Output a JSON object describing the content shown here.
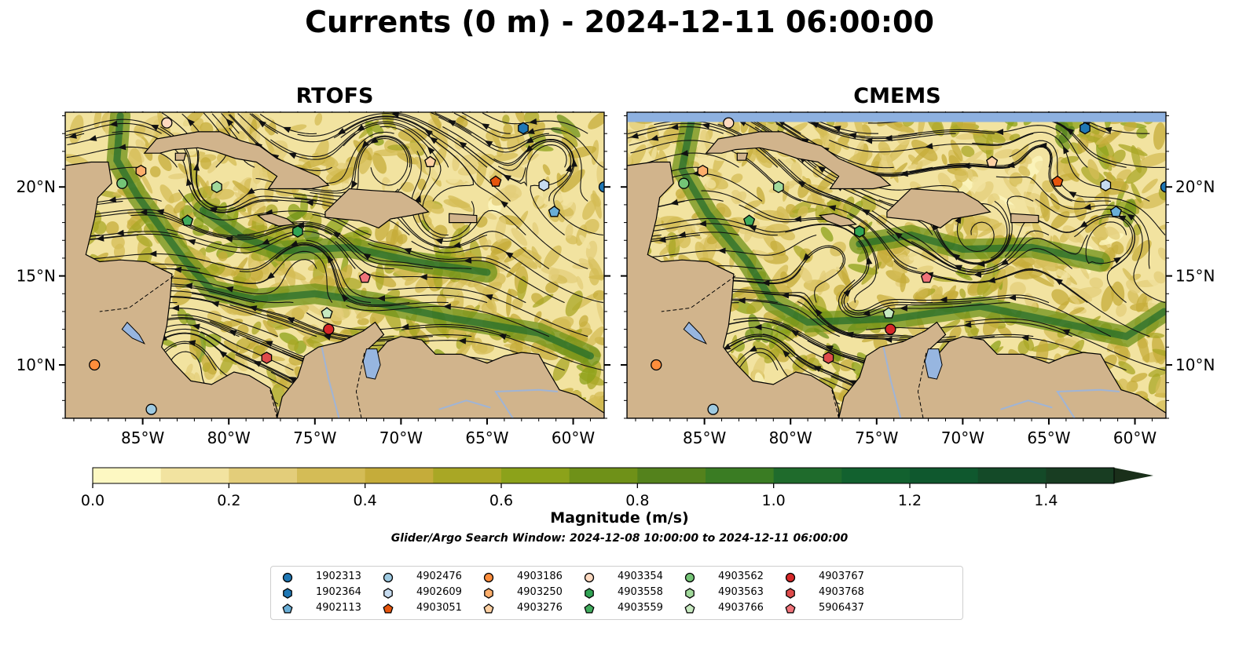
{
  "title": "Currents (0 m) - 2024-12-11 06:00:00",
  "panels": [
    {
      "title": "RTOFS"
    },
    {
      "title": "CMEMS"
    }
  ],
  "axes": {
    "x_ticks": [
      "85°W",
      "80°W",
      "75°W",
      "70°W",
      "65°W",
      "60°W"
    ],
    "y_ticks": [
      "20°N",
      "15°N",
      "10°N"
    ],
    "lon_range": [
      -89.5,
      -58.2
    ],
    "lat_range": [
      7,
      24.2
    ]
  },
  "colorbar": {
    "label": "Magnitude (m/s)",
    "ticks": [
      "0.0",
      "0.2",
      "0.4",
      "0.6",
      "0.8",
      "1.0",
      "1.2",
      "1.4"
    ],
    "range": [
      0,
      1.5
    ],
    "extend": "max",
    "colormap": [
      "#fdf8c2",
      "#f2e3a0",
      "#e3cd7a",
      "#d4bc56",
      "#c5ac3a",
      "#a9a725",
      "#8ca21a",
      "#6f9118",
      "#54821c",
      "#3a7c23",
      "#1f6b2c",
      "#12612f",
      "#0f582e",
      "#144a28",
      "#183d22",
      "#1a2f1a"
    ]
  },
  "search_window": "Glider/Argo Search Window: 2024-12-08 10:00:00 to 2024-12-11 06:00:00",
  "colors": {
    "land": "#d1b48c",
    "water_blue": "#97b6e0",
    "cmems_top_band": "#8eb1e0"
  },
  "legend": [
    {
      "id": "1902313",
      "marker": "circle",
      "color": "#1f77b4"
    },
    {
      "id": "1902364",
      "marker": "hexagon",
      "color": "#1f77b4"
    },
    {
      "id": "4902113",
      "marker": "pentagon",
      "color": "#6aaed6"
    },
    {
      "id": "4902476",
      "marker": "circle",
      "color": "#9ecae1"
    },
    {
      "id": "4902609",
      "marker": "hexagon",
      "color": "#c6dbef"
    },
    {
      "id": "4903051",
      "marker": "pentagon",
      "color": "#e6550d"
    },
    {
      "id": "4903186",
      "marker": "circle",
      "color": "#fd8d3c"
    },
    {
      "id": "4903250",
      "marker": "hexagon",
      "color": "#fdae6b"
    },
    {
      "id": "4903276",
      "marker": "pentagon",
      "color": "#fdd0a2"
    },
    {
      "id": "4903354",
      "marker": "circle",
      "color": "#fdd9c0"
    },
    {
      "id": "4903558",
      "marker": "hexagon",
      "color": "#31a354"
    },
    {
      "id": "4903559",
      "marker": "pentagon",
      "color": "#41ab5d"
    },
    {
      "id": "4903562",
      "marker": "circle",
      "color": "#74c476"
    },
    {
      "id": "4903563",
      "marker": "hexagon",
      "color": "#a1d99b"
    },
    {
      "id": "4903766",
      "marker": "pentagon",
      "color": "#c7e9c0"
    },
    {
      "id": "4903767",
      "marker": "circle",
      "color": "#d62728"
    },
    {
      "id": "4903768",
      "marker": "hexagon",
      "color": "#de4b4b"
    },
    {
      "id": "5906437",
      "marker": "pentagon",
      "color": "#f0737a"
    }
  ],
  "floats": [
    {
      "id": "1902313",
      "lon": -58.2,
      "lat": 20.0
    },
    {
      "id": "1902364",
      "lon": -62.9,
      "lat": 23.3
    },
    {
      "id": "4902113",
      "lon": -61.1,
      "lat": 18.6
    },
    {
      "id": "4902476",
      "lon": -84.5,
      "lat": 7.5
    },
    {
      "id": "4902609",
      "lon": -61.7,
      "lat": 20.1
    },
    {
      "id": "4903051",
      "lon": -64.5,
      "lat": 20.3
    },
    {
      "id": "4903186",
      "lon": -87.8,
      "lat": 10.0
    },
    {
      "id": "4903250",
      "lon": -85.1,
      "lat": 20.9
    },
    {
      "id": "4903276",
      "lon": -68.3,
      "lat": 21.4
    },
    {
      "id": "4903354",
      "lon": -83.6,
      "lat": 23.6
    },
    {
      "id": "4903558",
      "lon": -76.0,
      "lat": 17.5
    },
    {
      "id": "4903559",
      "lon": -82.4,
      "lat": 18.1
    },
    {
      "id": "4903562",
      "lon": -86.2,
      "lat": 20.2
    },
    {
      "id": "4903563",
      "lon": -80.7,
      "lat": 20.0
    },
    {
      "id": "4903766",
      "lon": -74.3,
      "lat": 12.9
    },
    {
      "id": "4903767",
      "lon": -74.2,
      "lat": 12.0
    },
    {
      "id": "4903768",
      "lon": -77.8,
      "lat": 10.4
    },
    {
      "id": "5906437",
      "lon": -72.1,
      "lat": 14.9
    }
  ]
}
